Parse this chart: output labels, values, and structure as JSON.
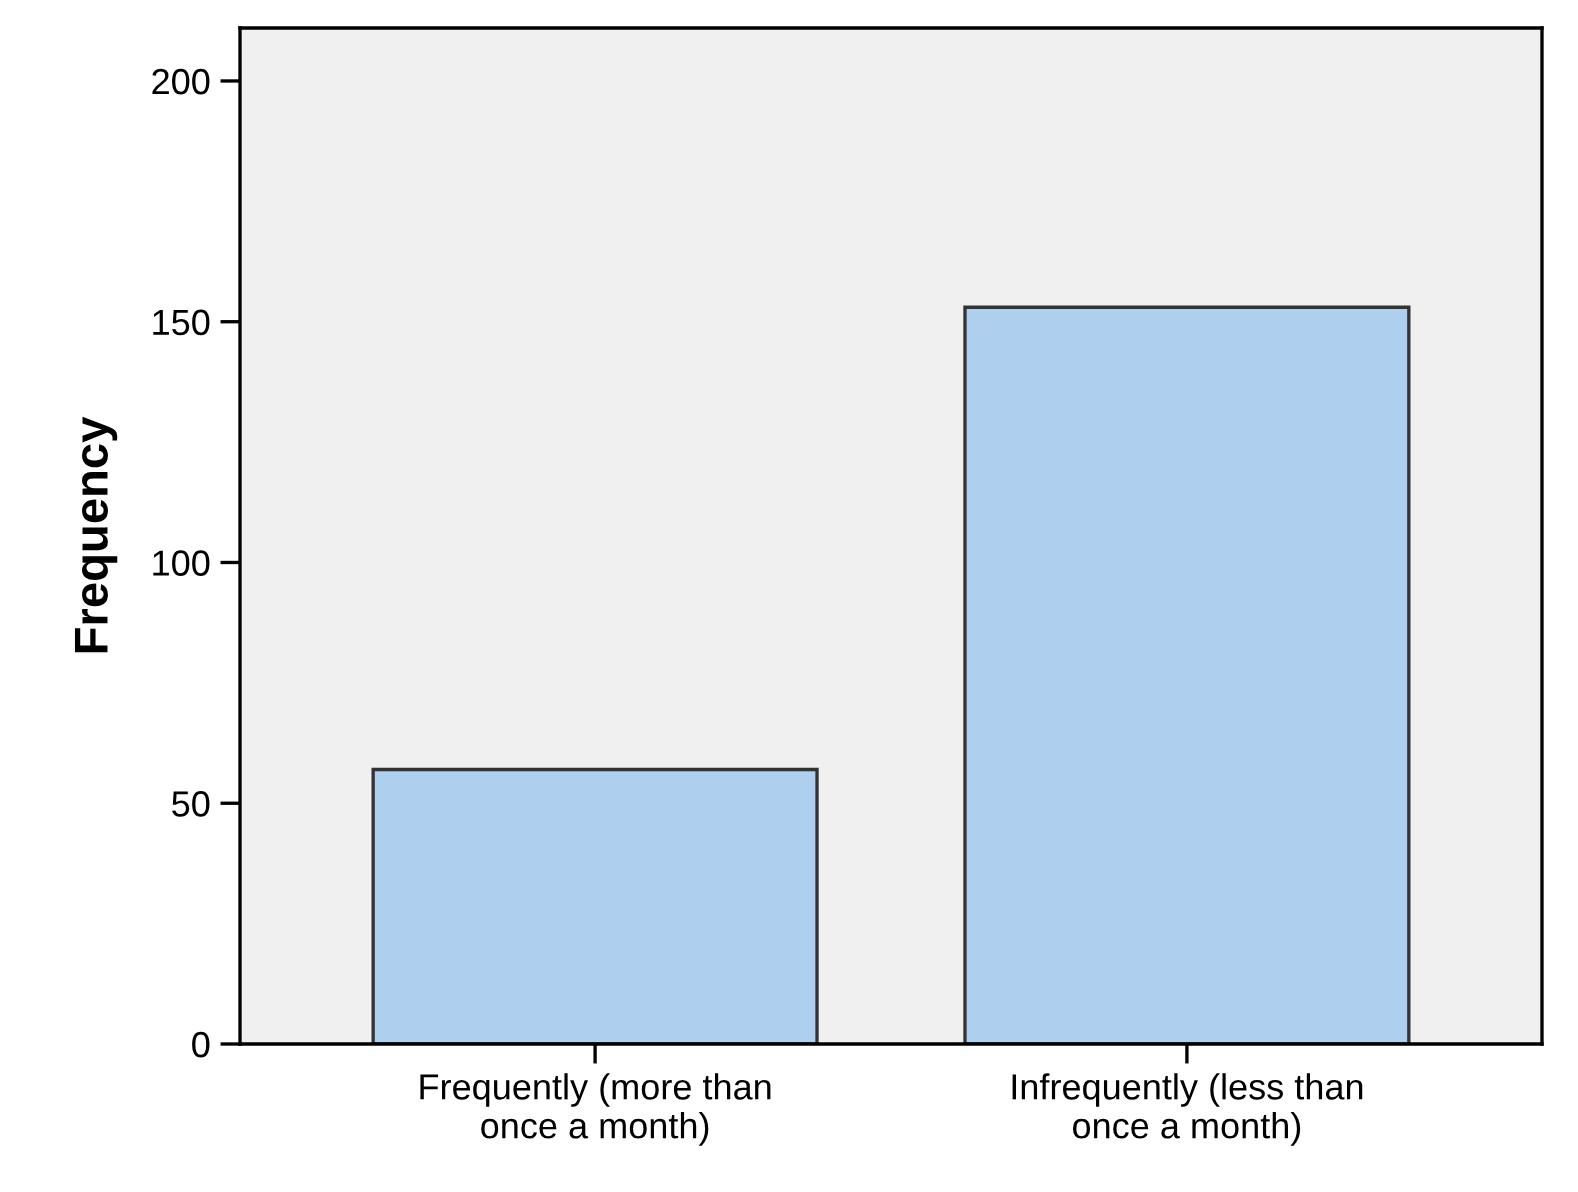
{
  "chart_data": {
    "type": "bar",
    "ylabel": "Frequency",
    "categories": [
      "Frequently (more than\nonce a month)",
      "Infrequently (less than\nonce a month)"
    ],
    "values": [
      57,
      153
    ],
    "color": "#aed0ee",
    "ylim": [
      0,
      211
    ],
    "yticks": [
      0,
      50,
      100,
      150,
      200
    ],
    "grid": false
  }
}
